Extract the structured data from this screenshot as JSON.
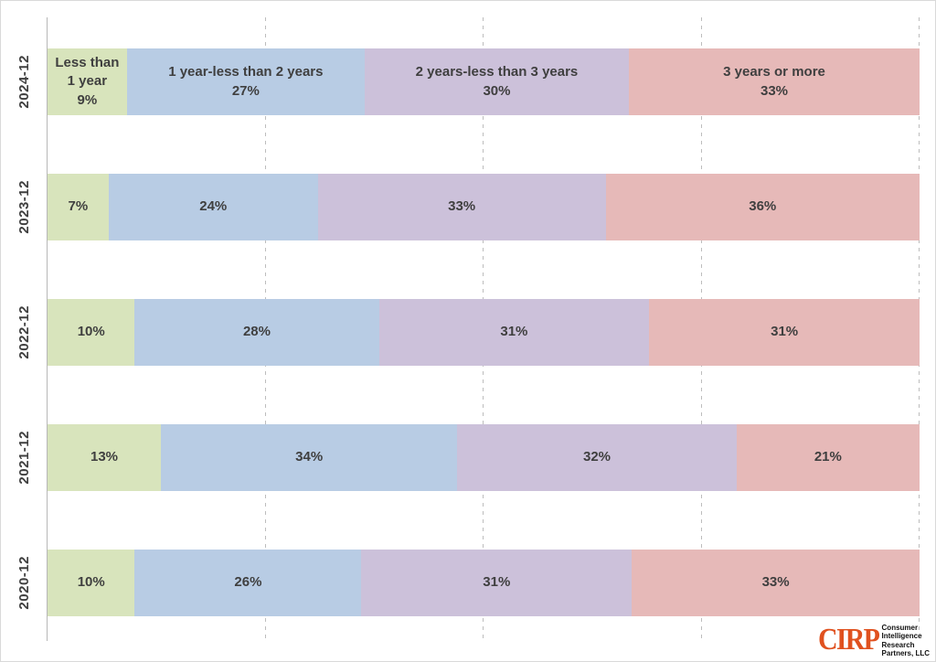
{
  "chart_data": {
    "type": "bar",
    "orientation": "horizontal",
    "stacked": true,
    "normalized_100pct": true,
    "categories": [
      "2024-12",
      "2023-12",
      "2022-12",
      "2021-12",
      "2020-12"
    ],
    "series": [
      {
        "name": "Less than 1 year",
        "color": "#d8e4bc",
        "values": [
          9,
          7,
          10,
          13,
          10
        ]
      },
      {
        "name": "1 year-less than 2 years",
        "color": "#b8cce4",
        "values": [
          27,
          24,
          28,
          34,
          26
        ]
      },
      {
        "name": "2 years-less than 3 years",
        "color": "#ccc1da",
        "values": [
          30,
          33,
          31,
          32,
          31
        ]
      },
      {
        "name": "3 years or more",
        "color": "#e6b9b8",
        "values": [
          33,
          36,
          31,
          21,
          33
        ]
      }
    ],
    "value_suffix": "%",
    "series_names_shown_on_first_row_only": true,
    "xlim": [
      0,
      100
    ],
    "gridlines_percent": [
      25,
      50,
      75,
      100
    ],
    "gridline_style": "dashed",
    "legend": "none",
    "title": "",
    "xlabel": "",
    "ylabel": ""
  },
  "colors": {
    "label_text": "#3f3f3f",
    "axis_line": "#b7b7b7",
    "gridline": "#bdbdbd",
    "figure_border": "#d9d9d9",
    "logo_accent": "#e0511f"
  },
  "logo": {
    "abbr": "CIRP",
    "lines": [
      "Consumer",
      "Intelligence",
      "Research",
      "Partners, LLC"
    ]
  }
}
